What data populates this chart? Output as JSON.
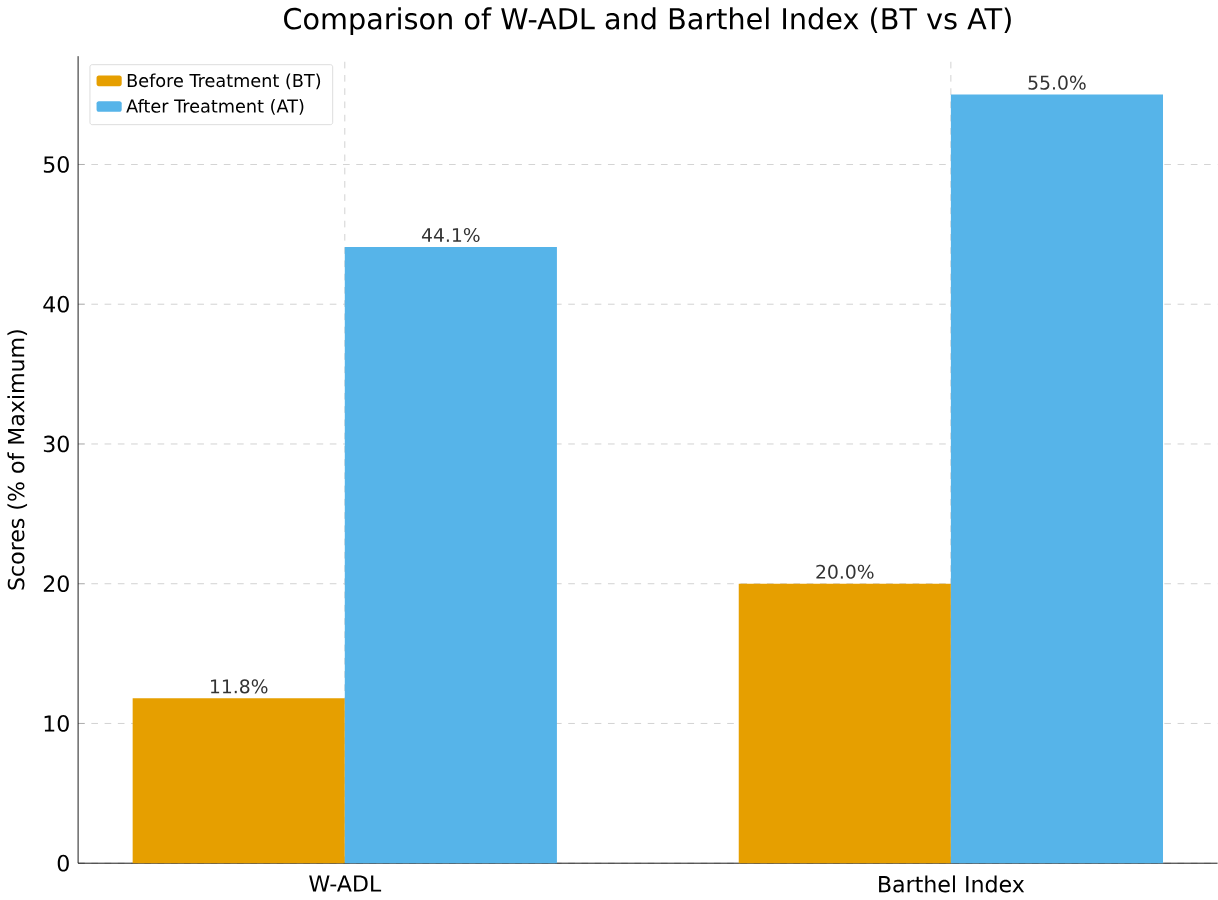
{
  "chart_data": {
    "type": "bar",
    "title": "Comparison of W-ADL and Barthel Index (BT vs AT)",
    "ylabel": "Scores (% of Maximum)",
    "categories": [
      "W-ADL",
      "Barthel Index"
    ],
    "series": [
      {
        "name": "Before Treatment (BT)",
        "color": "#e69f00",
        "values": [
          11.8,
          20.0
        ],
        "value_labels": [
          "11.8%",
          "20.0%"
        ]
      },
      {
        "name": "After Treatment (AT)",
        "color": "#56b4e9",
        "values": [
          44.1,
          55.0
        ],
        "value_labels": [
          "44.1%",
          "55.0%"
        ]
      }
    ],
    "ylim": [
      0,
      57.75
    ],
    "yticks": [
      0,
      10,
      20,
      30,
      40,
      50
    ],
    "grid": true,
    "legend": "top left"
  }
}
